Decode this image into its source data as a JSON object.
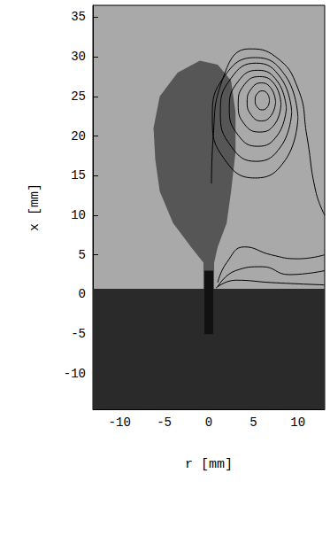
{
  "chart_data": {
    "type": "contour",
    "xlabel": "r [mm]",
    "ylabel": "x [mm]",
    "xlim": [
      -13,
      13
    ],
    "ylim": [
      -14.5,
      36.5
    ],
    "xticks": [
      -10,
      -5,
      0,
      5,
      10
    ],
    "yticks": [
      -10,
      -5,
      0,
      5,
      10,
      15,
      20,
      25,
      30,
      35
    ],
    "grid": false,
    "series": [
      {
        "type": "area",
        "color": "#2a2a2a",
        "x": [
          -13,
          13,
          13,
          -13
        ],
        "y": [
          -14.5,
          -14.5,
          0.7,
          0.7
        ]
      },
      {
        "type": "area",
        "color": "#565656",
        "x": [
          -0.6,
          -0.6,
          -2,
          -4,
          -5.5,
          -6,
          -6.2,
          -5.5,
          -3.5,
          -1,
          1,
          2.5,
          3,
          3,
          2.5,
          2,
          1,
          0.6,
          0.6
        ],
        "y": [
          0.7,
          4,
          6,
          9,
          13,
          17,
          21,
          25,
          28,
          29.5,
          29,
          27,
          23,
          18,
          13,
          9,
          6,
          4,
          0.7
        ]
      },
      {
        "type": "area",
        "color": "#111111",
        "x": [
          -0.5,
          -0.5,
          0.5,
          0.5
        ],
        "y": [
          -5,
          3,
          3,
          -5
        ]
      },
      {
        "type": "line",
        "color": "#000000",
        "x": [
          6.8,
          6.6,
          6,
          5.4,
          5.2,
          5.4,
          6,
          6.6,
          6.8
        ],
        "y": [
          24.5,
          25.3,
          25.7,
          25.3,
          24.5,
          23.7,
          23.3,
          23.7,
          24.5
        ]
      },
      {
        "type": "line",
        "color": "#000000",
        "x": [
          7.5,
          7.0,
          5.9,
          4.8,
          4.3,
          4.8,
          5.9,
          7.0,
          7.5
        ],
        "y": [
          24.3,
          26.0,
          26.7,
          26.0,
          24.3,
          22.6,
          21.9,
          22.6,
          24.3
        ]
      },
      {
        "type": "line",
        "color": "#000000",
        "x": [
          8.1,
          7.4,
          5.7,
          4.0,
          3.3,
          4.0,
          5.7,
          7.4,
          8.1
        ],
        "y": [
          24,
          26.5,
          27.5,
          26.5,
          24,
          21.5,
          20.5,
          21.5,
          24
        ]
      },
      {
        "type": "line",
        "color": "#000000",
        "x": [
          8.7,
          7.7,
          5.5,
          3.3,
          2.3,
          3.3,
          5.5,
          7.7,
          8.7
        ],
        "y": [
          23.5,
          26.9,
          28.3,
          26.9,
          23.5,
          20.1,
          18.7,
          20.1,
          23.5
        ]
      },
      {
        "type": "line",
        "color": "#000000",
        "x": [
          9.3,
          8.1,
          5.3,
          2.5,
          1.3,
          2.5,
          5.3,
          8.1,
          9.3
        ],
        "y": [
          23,
          27.3,
          29.2,
          27.3,
          23,
          18.7,
          16.8,
          18.7,
          23
        ]
      },
      {
        "type": "line",
        "color": "#000000",
        "x": [
          10.0,
          8.6,
          5.2,
          1.8,
          0.4,
          1.8,
          5.2,
          8.6,
          10.0
        ],
        "y": [
          22.3,
          27.6,
          29.9,
          27.6,
          22.3,
          17.0,
          14.7,
          17.0,
          22.3
        ]
      },
      {
        "type": "line",
        "color": "#000000",
        "x": [
          0.3,
          0.5,
          1.5,
          4.5,
          7.5,
          10,
          11,
          12,
          13
        ],
        "y": [
          14,
          20,
          27,
          31,
          30,
          26,
          20,
          13,
          10
        ]
      },
      {
        "type": "line",
        "color": "#000000",
        "x": [
          1,
          2,
          4,
          7,
          10,
          13
        ],
        "y": [
          1.5,
          4,
          6,
          5,
          4.5,
          5
        ]
      },
      {
        "type": "line",
        "color": "#000000",
        "x": [
          1,
          3,
          6,
          9,
          13
        ],
        "y": [
          1,
          3,
          3.5,
          2.5,
          3
        ]
      },
      {
        "type": "line",
        "color": "#000000",
        "x": [
          0.8,
          3,
          7,
          13
        ],
        "y": [
          0.8,
          1.8,
          1.5,
          1.2
        ]
      }
    ]
  }
}
